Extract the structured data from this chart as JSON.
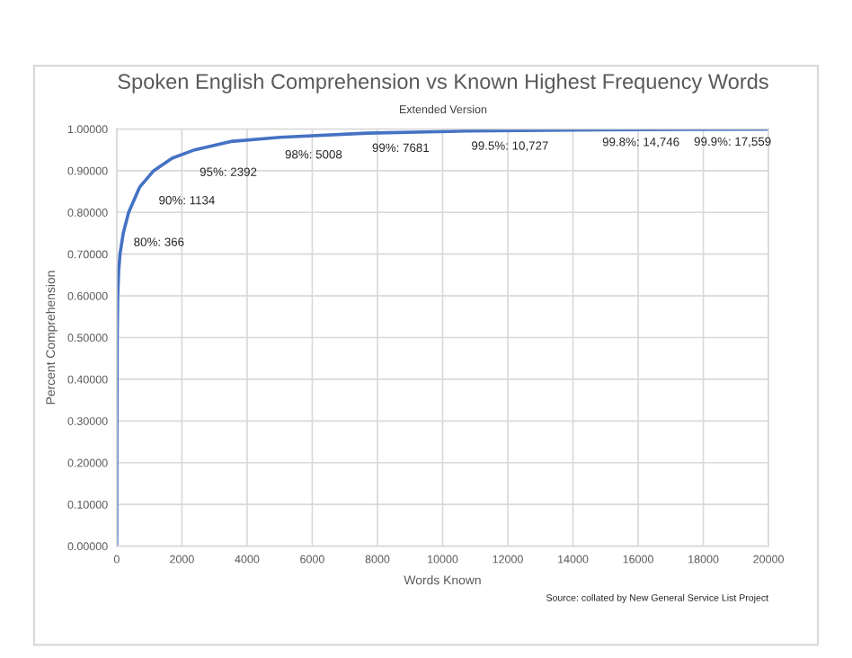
{
  "chart_data": {
    "type": "line",
    "title": "Spoken English Comprehension vs Known Highest Frequency Words",
    "subtitle": "Extended Version",
    "xlabel": "Words Known",
    "ylabel": "Percent Comprehension",
    "x": [
      0,
      5,
      15,
      30,
      60,
      100,
      200,
      366,
      700,
      1134,
      1700,
      2392,
      3500,
      5008,
      7681,
      10727,
      14746,
      17559,
      20000
    ],
    "series": [
      {
        "color": "#4472c4",
        "values": [
          0,
          0.3,
          0.5,
          0.6,
          0.66,
          0.7,
          0.75,
          0.8,
          0.86,
          0.9,
          0.93,
          0.95,
          0.97,
          0.98,
          0.99,
          0.995,
          0.998,
          0.999,
          0.9995
        ]
      }
    ],
    "xlim": [
      0,
      20000
    ],
    "xticks": [
      0,
      2000,
      4000,
      6000,
      8000,
      10000,
      12000,
      14000,
      16000,
      18000,
      20000
    ],
    "ylim": [
      0,
      1
    ],
    "yticks": [
      {
        "value": 0,
        "label": "0.00000"
      },
      {
        "value": 0.1,
        "label": "0.10000"
      },
      {
        "value": 0.2,
        "label": "0.20000"
      },
      {
        "value": 0.3,
        "label": "0.30000"
      },
      {
        "value": 0.4,
        "label": "0.40000"
      },
      {
        "value": 0.5,
        "label": "0.50000"
      },
      {
        "value": 0.6,
        "label": "0.60000"
      },
      {
        "value": 0.7,
        "label": "0.70000"
      },
      {
        "value": 0.8,
        "label": "0.80000"
      },
      {
        "value": 0.9,
        "label": "0.90000"
      },
      {
        "value": 1,
        "label": "1.00000"
      }
    ],
    "grid": true,
    "marker": "none",
    "line_style": "solid",
    "legend": false,
    "annotations": [
      {
        "text": "80%: 366",
        "x": 366,
        "y": 0.8
      },
      {
        "text": "90%: 1134",
        "x": 1134,
        "y": 0.9
      },
      {
        "text": "95%: 2392",
        "x": 2392,
        "y": 0.95
      },
      {
        "text": "98%: 5008",
        "x": 5008,
        "y": 0.98
      },
      {
        "text": "99%: 7681",
        "x": 7681,
        "y": 0.99
      },
      {
        "text": "99.5%: 10,727",
        "x": 10727,
        "y": 0.995
      },
      {
        "text": "99.8%: 14,746",
        "x": 14746,
        "y": 0.998
      },
      {
        "text": "99.9%: 17,559",
        "x": 17559,
        "y": 0.999
      },
      "Source: collated by New General Service List Project"
    ]
  }
}
